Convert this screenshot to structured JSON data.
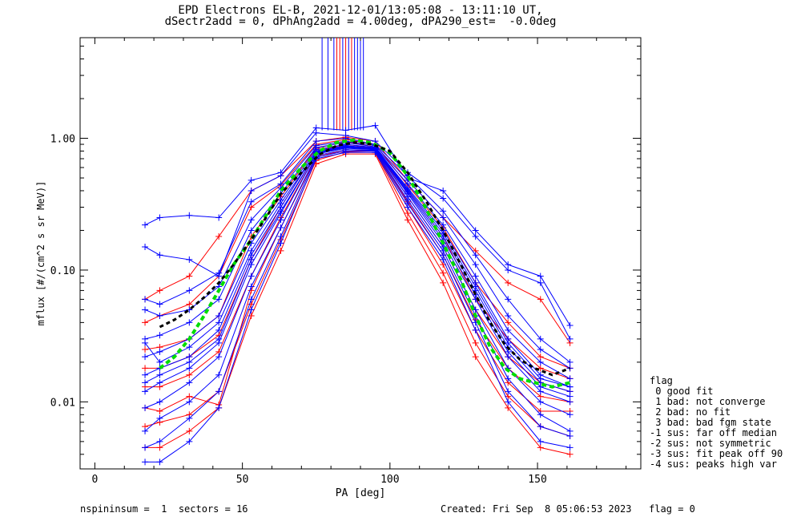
{
  "title_line1": "EPD Electrons EL-B, 2021-12-01/13:05:08 - 13:11:10 UT,",
  "title_line2": "dSectr2add = 0, dPhAng2add = 4.00deg, dPA290_est=  -0.0deg",
  "legend": {
    "heading": "flag",
    "items": [
      " 0 good fit",
      " 1 bad: not converge",
      " 2 bad: no fit",
      " 3 bad: bad fgm state",
      "-1 sus: far off median",
      "-2 sus: not symmetric",
      "-3 sus: fit peak off 90",
      "-4 sus: peaks high var"
    ]
  },
  "footer": {
    "left": "nspininsum =  1  sectors = 16",
    "right": "Created: Fri Sep  8 05:06:53 2023   flag = 0"
  },
  "colors": {
    "blue_series": "#0000ff",
    "red_series": "#ff0000",
    "median_curve": "#000000",
    "fit_curve": "#00dd00"
  },
  "chart_data": {
    "type": "line",
    "xlabel": "PA [deg]",
    "ylabel": "mflux [#/(cm^2 s sr MeV)]",
    "xlim": [
      -5,
      185
    ],
    "ylim": [
      0.0031,
      5.8
    ],
    "yscale": "log",
    "xticks": [
      0,
      50,
      100,
      150
    ],
    "yticks": [
      0.01,
      0.1,
      1.0
    ],
    "ytick_labels": [
      "0.01",
      "0.10",
      "1.00"
    ],
    "grid": false,
    "pa_bins": [
      17,
      22,
      32,
      42,
      53,
      63,
      75,
      85,
      95,
      106,
      118,
      129,
      140,
      151,
      161
    ],
    "blue_traces": [
      [
        0.22,
        0.25,
        0.26,
        0.25,
        0.48,
        0.55,
        1.2,
        1.15,
        1.25,
        0.5,
        0.4,
        0.2,
        0.11,
        0.09,
        0.038
      ],
      [
        0.15,
        0.13,
        0.12,
        0.09,
        0.4,
        0.52,
        1.1,
        1.05,
        0.95,
        0.55,
        0.35,
        0.18,
        0.1,
        0.08,
        0.03
      ],
      [
        0.06,
        0.055,
        0.07,
        0.095,
        0.33,
        0.45,
        0.95,
        1.0,
        0.9,
        0.52,
        0.28,
        0.13,
        0.06,
        0.03,
        0.02
      ],
      [
        0.05,
        0.045,
        0.05,
        0.075,
        0.24,
        0.42,
        0.88,
        0.95,
        0.88,
        0.48,
        0.25,
        0.11,
        0.045,
        0.025,
        0.018
      ],
      [
        0.03,
        0.032,
        0.04,
        0.06,
        0.2,
        0.38,
        0.85,
        0.93,
        0.86,
        0.45,
        0.22,
        0.09,
        0.035,
        0.02,
        0.015
      ],
      [
        0.022,
        0.024,
        0.03,
        0.045,
        0.16,
        0.34,
        0.82,
        0.9,
        0.85,
        0.42,
        0.2,
        0.08,
        0.03,
        0.016,
        0.013
      ],
      [
        0.016,
        0.018,
        0.022,
        0.035,
        0.13,
        0.3,
        0.8,
        0.88,
        0.84,
        0.4,
        0.18,
        0.07,
        0.026,
        0.014,
        0.012
      ],
      [
        0.012,
        0.014,
        0.018,
        0.028,
        0.11,
        0.27,
        0.78,
        0.86,
        0.83,
        0.38,
        0.16,
        0.06,
        0.022,
        0.012,
        0.01
      ],
      [
        0.009,
        0.01,
        0.014,
        0.022,
        0.09,
        0.24,
        0.76,
        0.84,
        0.82,
        0.36,
        0.15,
        0.05,
        0.018,
        0.01,
        0.008
      ],
      [
        0.006,
        0.0075,
        0.01,
        0.016,
        0.075,
        0.21,
        0.74,
        0.82,
        0.81,
        0.34,
        0.14,
        0.045,
        0.015,
        0.008,
        0.006
      ],
      [
        0.0045,
        0.005,
        0.0075,
        0.012,
        0.06,
        0.18,
        0.72,
        0.8,
        0.8,
        0.32,
        0.13,
        0.04,
        0.012,
        0.0065,
        0.0055
      ],
      [
        0.0035,
        0.0035,
        0.005,
        0.009,
        0.05,
        0.16,
        0.7,
        0.78,
        0.78,
        0.3,
        0.12,
        0.035,
        0.01,
        0.005,
        0.0045
      ],
      [
        0.028,
        0.02,
        0.026,
        0.04,
        0.14,
        0.32,
        0.79,
        0.87,
        0.84,
        0.41,
        0.19,
        0.075,
        0.028,
        0.015,
        0.013
      ],
      [
        0.014,
        0.016,
        0.02,
        0.03,
        0.12,
        0.28,
        0.77,
        0.85,
        0.83,
        0.39,
        0.17,
        0.065,
        0.024,
        0.013,
        0.011
      ]
    ],
    "red_traces": [
      [
        0.06,
        0.07,
        0.09,
        0.18,
        0.4,
        0.52,
        0.95,
        1.02,
        0.95,
        0.48,
        0.25,
        0.14,
        0.08,
        0.06,
        0.028
      ],
      [
        0.04,
        0.045,
        0.055,
        0.09,
        0.3,
        0.44,
        0.9,
        0.98,
        0.9,
        0.44,
        0.21,
        0.08,
        0.04,
        0.022,
        0.018
      ],
      [
        0.025,
        0.026,
        0.03,
        0.045,
        0.18,
        0.36,
        0.84,
        0.94,
        0.86,
        0.4,
        0.18,
        0.06,
        0.03,
        0.018,
        0.015
      ],
      [
        0.018,
        0.018,
        0.022,
        0.032,
        0.12,
        0.3,
        0.8,
        0.9,
        0.84,
        0.36,
        0.15,
        0.05,
        0.022,
        0.014,
        0.012
      ],
      [
        0.013,
        0.013,
        0.016,
        0.024,
        0.09,
        0.25,
        0.76,
        0.86,
        0.82,
        0.33,
        0.13,
        0.042,
        0.018,
        0.011,
        0.01
      ],
      [
        0.009,
        0.0085,
        0.011,
        0.0095,
        0.07,
        0.21,
        0.72,
        0.82,
        0.8,
        0.3,
        0.11,
        0.035,
        0.014,
        0.0085,
        0.0085
      ],
      [
        0.0065,
        0.007,
        0.008,
        0.012,
        0.055,
        0.17,
        0.68,
        0.79,
        0.78,
        0.27,
        0.095,
        0.028,
        0.011,
        0.0065,
        0.0055
      ],
      [
        0.0045,
        0.0045,
        0.006,
        0.009,
        0.045,
        0.14,
        0.64,
        0.76,
        0.76,
        0.24,
        0.08,
        0.022,
        0.009,
        0.0045,
        0.004
      ]
    ],
    "median_curve": {
      "x": [
        22,
        27,
        32,
        37,
        42,
        47,
        53,
        58,
        63,
        70,
        76,
        82,
        88,
        94,
        100,
        106,
        112,
        118,
        124,
        129,
        134,
        139,
        144,
        149,
        155,
        161
      ],
      "y": [
        0.037,
        0.042,
        0.05,
        0.062,
        0.08,
        0.11,
        0.17,
        0.25,
        0.38,
        0.55,
        0.75,
        0.88,
        0.93,
        0.9,
        0.8,
        0.55,
        0.34,
        0.2,
        0.11,
        0.065,
        0.04,
        0.027,
        0.021,
        0.018,
        0.016,
        0.018
      ]
    },
    "fit_curve": {
      "x": [
        22,
        27,
        32,
        37,
        42,
        47,
        53,
        58,
        63,
        70,
        76,
        82,
        88,
        94,
        100,
        106,
        112,
        118,
        124,
        129,
        134,
        139,
        144,
        149,
        155,
        161
      ],
      "y": [
        0.018,
        0.022,
        0.03,
        0.045,
        0.07,
        0.11,
        0.17,
        0.26,
        0.4,
        0.6,
        0.8,
        0.93,
        0.97,
        0.92,
        0.78,
        0.52,
        0.3,
        0.16,
        0.085,
        0.045,
        0.026,
        0.018,
        0.015,
        0.014,
        0.013,
        0.014
      ]
    },
    "top_markers": [
      {
        "x": 77,
        "color": "blue"
      },
      {
        "x": 79,
        "color": "blue"
      },
      {
        "x": 81,
        "color": "blue"
      },
      {
        "x": 82,
        "color": "red"
      },
      {
        "x": 83,
        "color": "red"
      },
      {
        "x": 84,
        "color": "blue"
      },
      {
        "x": 85,
        "color": "red"
      },
      {
        "x": 86,
        "color": "blue"
      },
      {
        "x": 87,
        "color": "red"
      },
      {
        "x": 88,
        "color": "blue"
      },
      {
        "x": 89,
        "color": "blue"
      },
      {
        "x": 90,
        "color": "blue"
      },
      {
        "x": 91,
        "color": "blue"
      }
    ]
  }
}
